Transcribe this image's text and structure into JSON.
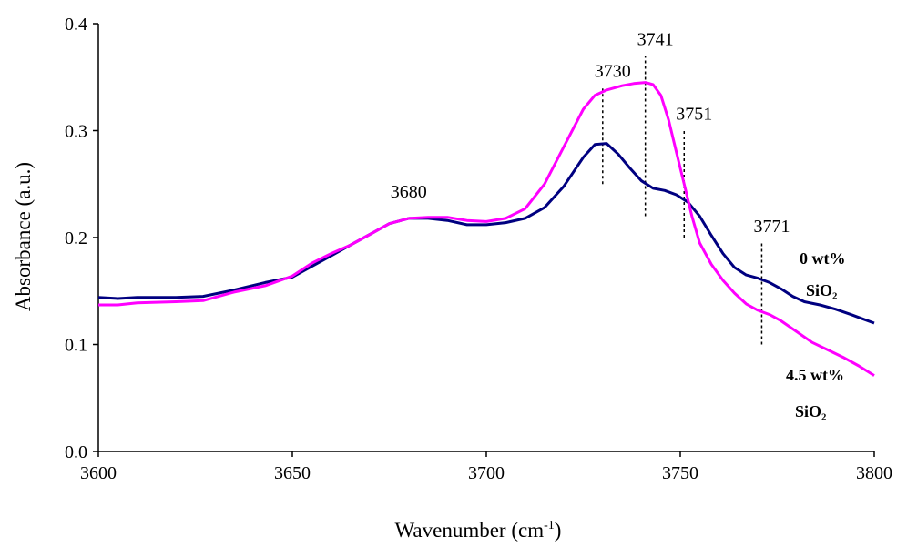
{
  "chart_data": {
    "type": "line",
    "title": "",
    "xlabel": "Wavenumber (cm",
    "xlabel_sup": "-1",
    "xlabel_close": ")",
    "ylabel": "Absorbance (a.u.)",
    "xlim": [
      3600,
      3800
    ],
    "ylim": [
      0.0,
      0.4
    ],
    "x_ticks": [
      "3600",
      "3650",
      "3700",
      "3750",
      "3800"
    ],
    "y_ticks": [
      "0.0",
      "0.1",
      "0.2",
      "0.3",
      "0.4"
    ],
    "grid": false,
    "series": [
      {
        "label_line1": "0 wt%",
        "label_line2": "SiO₂",
        "color": "#000080",
        "points": [
          [
            3600,
            0.144
          ],
          [
            3605,
            0.143
          ],
          [
            3610,
            0.144
          ],
          [
            3620,
            0.144
          ],
          [
            3627,
            0.145
          ],
          [
            3635,
            0.151
          ],
          [
            3643,
            0.158
          ],
          [
            3650,
            0.163
          ],
          [
            3655,
            0.173
          ],
          [
            3660,
            0.183
          ],
          [
            3665,
            0.193
          ],
          [
            3670,
            0.203
          ],
          [
            3675,
            0.213
          ],
          [
            3680,
            0.218
          ],
          [
            3685,
            0.218
          ],
          [
            3690,
            0.216
          ],
          [
            3695,
            0.212
          ],
          [
            3700,
            0.212
          ],
          [
            3705,
            0.214
          ],
          [
            3710,
            0.218
          ],
          [
            3715,
            0.228
          ],
          [
            3720,
            0.248
          ],
          [
            3725,
            0.275
          ],
          [
            3728,
            0.287
          ],
          [
            3731,
            0.288
          ],
          [
            3734,
            0.278
          ],
          [
            3737,
            0.265
          ],
          [
            3740,
            0.253
          ],
          [
            3743,
            0.246
          ],
          [
            3746,
            0.244
          ],
          [
            3749,
            0.24
          ],
          [
            3752,
            0.233
          ],
          [
            3755,
            0.22
          ],
          [
            3758,
            0.202
          ],
          [
            3761,
            0.185
          ],
          [
            3764,
            0.172
          ],
          [
            3767,
            0.165
          ],
          [
            3770,
            0.162
          ],
          [
            3773,
            0.158
          ],
          [
            3776,
            0.152
          ],
          [
            3779,
            0.145
          ],
          [
            3782,
            0.14
          ],
          [
            3786,
            0.137
          ],
          [
            3790,
            0.133
          ],
          [
            3794,
            0.128
          ],
          [
            3797,
            0.124
          ],
          [
            3800,
            0.12
          ]
        ]
      },
      {
        "label_line1": "4.5 wt%",
        "label_line2": "SiO₂",
        "color": "#ff00ff",
        "points": [
          [
            3600,
            0.137
          ],
          [
            3605,
            0.137
          ],
          [
            3610,
            0.139
          ],
          [
            3620,
            0.14
          ],
          [
            3627,
            0.141
          ],
          [
            3635,
            0.149
          ],
          [
            3643,
            0.155
          ],
          [
            3650,
            0.164
          ],
          [
            3655,
            0.176
          ],
          [
            3660,
            0.185
          ],
          [
            3665,
            0.193
          ],
          [
            3670,
            0.203
          ],
          [
            3675,
            0.213
          ],
          [
            3680,
            0.218
          ],
          [
            3685,
            0.219
          ],
          [
            3690,
            0.219
          ],
          [
            3695,
            0.216
          ],
          [
            3700,
            0.215
          ],
          [
            3705,
            0.218
          ],
          [
            3710,
            0.227
          ],
          [
            3715,
            0.25
          ],
          [
            3720,
            0.285
          ],
          [
            3725,
            0.32
          ],
          [
            3728,
            0.333
          ],
          [
            3731,
            0.338
          ],
          [
            3735,
            0.342
          ],
          [
            3738,
            0.344
          ],
          [
            3741,
            0.345
          ],
          [
            3743,
            0.343
          ],
          [
            3745,
            0.333
          ],
          [
            3747,
            0.31
          ],
          [
            3749,
            0.28
          ],
          [
            3751,
            0.25
          ],
          [
            3753,
            0.22
          ],
          [
            3755,
            0.195
          ],
          [
            3758,
            0.175
          ],
          [
            3761,
            0.16
          ],
          [
            3764,
            0.148
          ],
          [
            3767,
            0.138
          ],
          [
            3770,
            0.132
          ],
          [
            3773,
            0.128
          ],
          [
            3776,
            0.122
          ],
          [
            3780,
            0.112
          ],
          [
            3784,
            0.102
          ],
          [
            3788,
            0.095
          ],
          [
            3792,
            0.088
          ],
          [
            3796,
            0.08
          ],
          [
            3800,
            0.071
          ]
        ]
      }
    ],
    "annotations": [
      {
        "text": "3680",
        "x": 3680
      },
      {
        "text": "3730",
        "x": 3730,
        "line_from": 0.25,
        "line_to": 0.34
      },
      {
        "text": "3741",
        "x": 3741,
        "line_from": 0.22,
        "line_to": 0.37
      },
      {
        "text": "3751",
        "x": 3751,
        "line_from": 0.2,
        "line_to": 0.3
      },
      {
        "text": "3771",
        "x": 3771,
        "line_from": 0.1,
        "line_to": 0.195
      }
    ]
  }
}
